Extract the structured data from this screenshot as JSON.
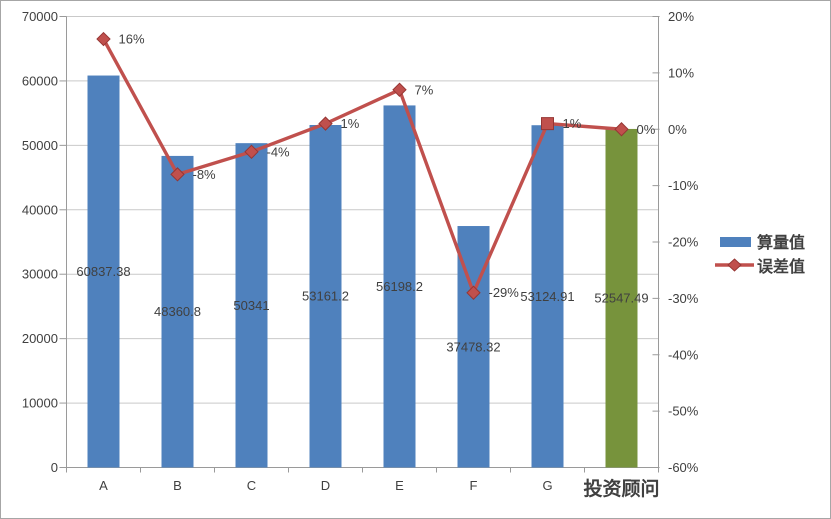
{
  "chart_data": {
    "type": "bar",
    "subtype": "combo-bar-line",
    "categories": [
      "A",
      "B",
      "C",
      "D",
      "E",
      "F",
      "G",
      "投资顾问"
    ],
    "series": [
      {
        "name": "算量值",
        "type": "bar",
        "values": [
          60837.38,
          48360.8,
          50341,
          53161.2,
          56198.2,
          37478.32,
          53124.91,
          52547.49
        ],
        "labels": [
          "60837.38",
          "48360.8",
          "50341",
          "53161.2",
          "56198.2",
          "37478.32",
          "53124.91",
          "52547.49"
        ],
        "bar_colors": [
          "#4f81bd",
          "#4f81bd",
          "#4f81bd",
          "#4f81bd",
          "#4f81bd",
          "#4f81bd",
          "#4f81bd",
          "#77933c"
        ]
      },
      {
        "name": "误差值",
        "type": "line",
        "values": [
          0.16,
          -0.08,
          -0.04,
          0.01,
          0.07,
          -0.29,
          0.01,
          0.0
        ],
        "labels": [
          "16%",
          "-8%",
          "-4%",
          "1%",
          "7%",
          "-29%",
          "1%",
          "0%"
        ],
        "markers": [
          "diamond",
          "diamond",
          "diamond",
          "diamond",
          "diamond",
          "diamond",
          "square",
          "diamond"
        ],
        "color": "#c0504d"
      }
    ],
    "left_axis": {
      "min": 0,
      "max": 70000,
      "step": 10000,
      "ticks": [
        "0",
        "10000",
        "20000",
        "30000",
        "40000",
        "50000",
        "60000",
        "70000"
      ]
    },
    "right_axis": {
      "min": -0.6,
      "max": 0.2,
      "step": 0.1,
      "ticks": [
        "-60%",
        "-50%",
        "-40%",
        "-30%",
        "-20%",
        "-10%",
        "0%",
        "10%",
        "20%"
      ]
    },
    "legend": {
      "position": "right",
      "items": [
        {
          "label": "算量值",
          "swatch": "bar",
          "color": "#4f81bd"
        },
        {
          "label": "误差值",
          "swatch": "line-diamond",
          "color": "#c0504d"
        }
      ]
    },
    "grid": "horizontal-major",
    "colors": {
      "bar_blue": "#4f81bd",
      "bar_green": "#77933c",
      "line_red": "#c0504d",
      "gridline": "#c9c9c9",
      "axis_line": "#9a9a9a",
      "text": "#404040",
      "background": "#ffffff",
      "frame_border": "#a6a6a6"
    }
  }
}
